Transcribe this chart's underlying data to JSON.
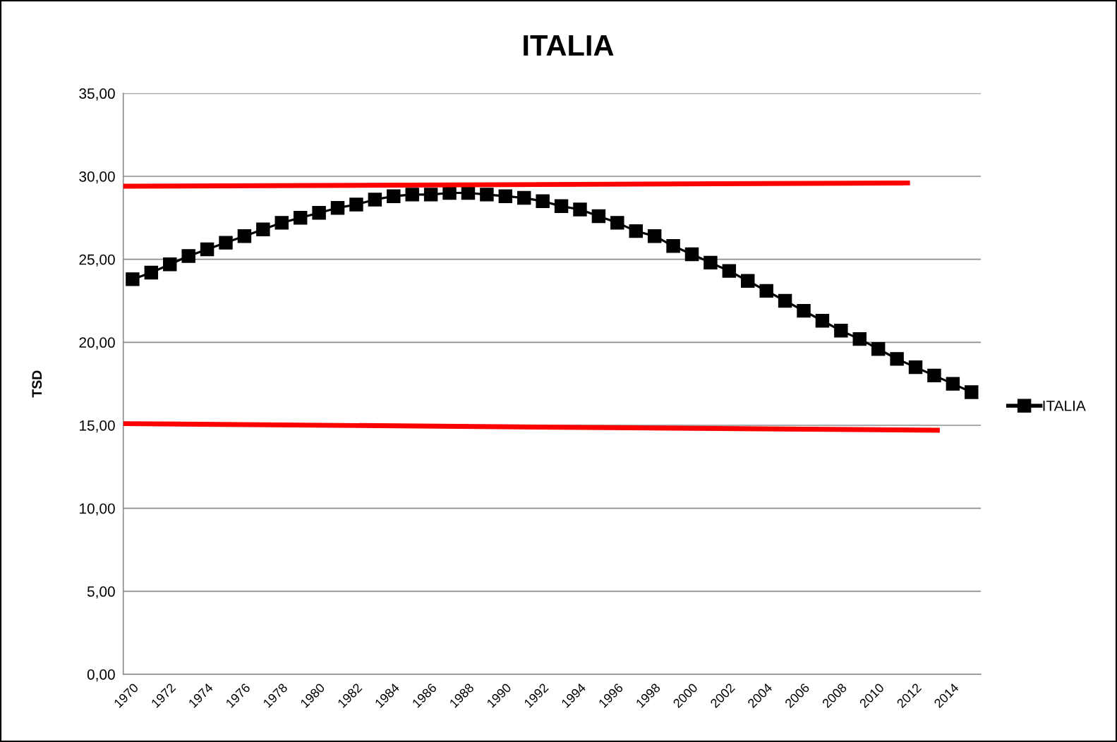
{
  "chart_data": {
    "type": "line",
    "title": "ITALIA",
    "ylabel": "TSD",
    "x": [
      1970,
      1971,
      1972,
      1973,
      1974,
      1975,
      1976,
      1977,
      1978,
      1979,
      1980,
      1981,
      1982,
      1983,
      1984,
      1985,
      1986,
      1987,
      1988,
      1989,
      1990,
      1991,
      1992,
      1993,
      1994,
      1995,
      1996,
      1997,
      1998,
      1999,
      2000,
      2001,
      2002,
      2003,
      2004,
      2005,
      2006,
      2007,
      2008,
      2009,
      2010,
      2011,
      2012,
      2013,
      2014,
      2015
    ],
    "series": [
      {
        "name": "ITALIA",
        "color": "#000000",
        "marker": "square",
        "values": [
          23.8,
          24.2,
          24.7,
          25.2,
          25.6,
          26.0,
          26.4,
          26.8,
          27.2,
          27.5,
          27.8,
          28.1,
          28.3,
          28.6,
          28.8,
          28.9,
          28.9,
          29.0,
          29.0,
          28.9,
          28.8,
          28.7,
          28.5,
          28.2,
          28.0,
          27.6,
          27.2,
          26.7,
          26.4,
          25.8,
          25.3,
          24.8,
          24.3,
          23.7,
          23.1,
          22.5,
          21.9,
          21.3,
          20.7,
          20.2,
          19.6,
          19.0,
          18.5,
          18.0,
          17.5,
          17.0
        ]
      },
      {
        "type": "line",
        "color": "#ff0000",
        "marker": "none",
        "x": [
          1969.5,
          2011.7
        ],
        "values": [
          29.4,
          29.6
        ]
      },
      {
        "type": "line",
        "color": "#ff0000",
        "marker": "none",
        "x": [
          1969.5,
          2013.3
        ],
        "values": [
          15.1,
          14.7
        ]
      }
    ],
    "xlim": [
      1969.5,
      2015.5
    ],
    "xticks": [
      1970,
      1972,
      1974,
      1976,
      1978,
      1980,
      1982,
      1984,
      1986,
      1988,
      1990,
      1992,
      1994,
      1996,
      1998,
      2000,
      2002,
      2004,
      2006,
      2008,
      2010,
      2012,
      2014
    ],
    "ylim": [
      0,
      35
    ],
    "yticks": [
      {
        "value": 0,
        "label": "0,00"
      },
      {
        "value": 5,
        "label": "5,00"
      },
      {
        "value": 10,
        "label": "10,00"
      },
      {
        "value": 15,
        "label": "15,00"
      },
      {
        "value": 20,
        "label": "20,00"
      },
      {
        "value": 25,
        "label": "25,00"
      },
      {
        "value": 30,
        "label": "30,00"
      },
      {
        "value": 35,
        "label": "35,00"
      }
    ],
    "grid": "y",
    "legend": "right",
    "line_style": "solid"
  }
}
